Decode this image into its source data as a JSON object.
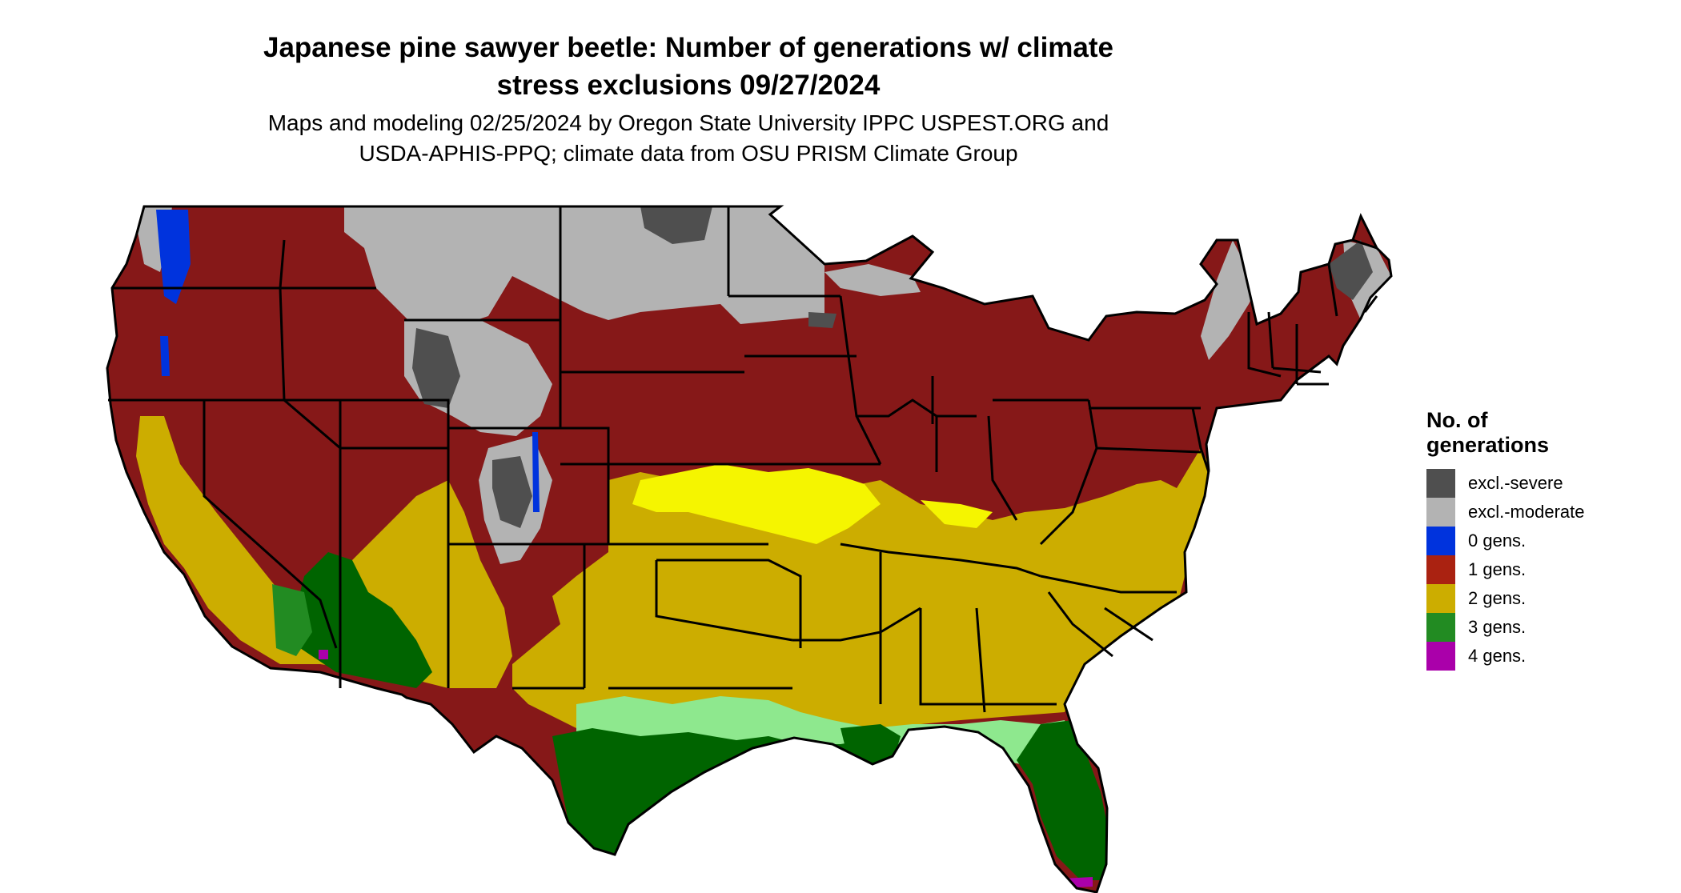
{
  "title_line1": "Japanese pine sawyer beetle: Number of generations w/ climate",
  "title_line2": "stress exclusions 09/27/2024",
  "subtitle_line1": "Maps and modeling 02/25/2024 by Oregon State University IPPC USPEST.ORG and",
  "subtitle_line2": "USDA-APHIS-PPQ; climate data from OSU PRISM Climate Group",
  "legend": {
    "title_line1": "No. of",
    "title_line2": "generations",
    "items": [
      {
        "label": "excl.-severe",
        "color": "#4f4f4f"
      },
      {
        "label": "excl.-moderate",
        "color": "#b3b3b3"
      },
      {
        "label": "0 gens.",
        "color": "#0033dd"
      },
      {
        "label": "1 gens.",
        "color": "#aa2211"
      },
      {
        "label": "2 gens.",
        "color": "#ccad00"
      },
      {
        "label": "3 gens.",
        "color": "#228b22"
      },
      {
        "label": "4 gens.",
        "color": "#aa00aa"
      }
    ]
  },
  "map_colors": {
    "one_gen_dark": "#861818",
    "one_gen_orange": "#ee4411",
    "two_gen_bright": "#f5f500",
    "three_gen_dark": "#006400",
    "three_gen_light": "#8ee88e"
  }
}
